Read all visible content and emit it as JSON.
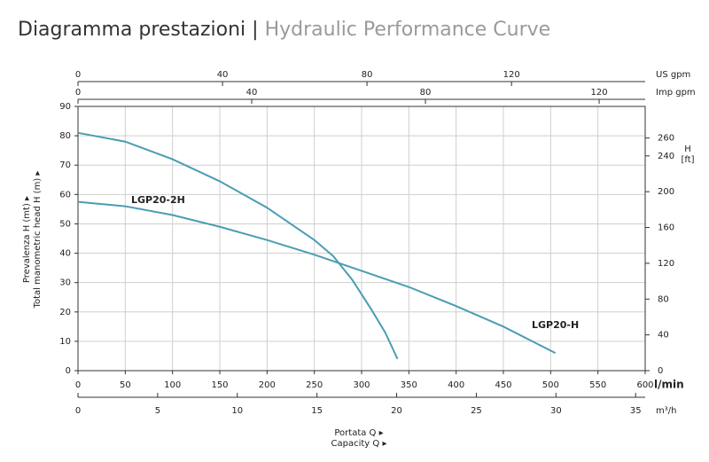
{
  "chart_data": {
    "type": "line",
    "title": "Diagramma prestazioni |",
    "subtitle": "Hydraulic Performance Curve",
    "x_label": "l/min",
    "xlim": [
      0,
      600
    ],
    "xticks": [
      0,
      50,
      100,
      150,
      200,
      250,
      300,
      350,
      400,
      450,
      500,
      550,
      600
    ],
    "ylim": [
      0,
      90
    ],
    "yticks": [
      0,
      10,
      20,
      30,
      40,
      50,
      60,
      70,
      80,
      90
    ],
    "y_label": [
      "Prevalenza H (mt) ▸",
      "Total manometric head H (m) ▸"
    ],
    "y2lim": [
      0,
      295.3
    ],
    "y2ticks": [
      0,
      40,
      80,
      120,
      160,
      200,
      240,
      260
    ],
    "y2_label": [
      "H",
      "[ft]"
    ],
    "us_gpm": {
      "label": "US gpm",
      "lim": [
        0,
        157
      ],
      "ticks": [
        0,
        40,
        80,
        120
      ]
    },
    "imp_gpm": {
      "label": "Imp gpm",
      "lim": [
        0,
        130.6
      ],
      "ticks": [
        0,
        40,
        80,
        120
      ]
    },
    "m3h": {
      "label": "m³/h",
      "lim": [
        0,
        35.6
      ],
      "ticks": [
        0,
        5,
        10,
        15,
        20,
        25,
        30,
        35
      ]
    },
    "x_caption": [
      "Portata Q ▸",
      "Capacity Q ▸"
    ],
    "grid": true,
    "series": [
      {
        "name": "LGP20-2H",
        "color": "#4a9db3",
        "x": [
          0,
          50,
          100,
          150,
          200,
          250,
          270,
          290,
          310,
          325,
          338
        ],
        "values": [
          81,
          78,
          72,
          64.5,
          55.5,
          44.5,
          39,
          31,
          21,
          13,
          4
        ]
      },
      {
        "name": "LGP20-H",
        "color": "#4a9db3",
        "x": [
          0,
          50,
          100,
          150,
          200,
          250,
          300,
          350,
          400,
          450,
          505
        ],
        "values": [
          57.5,
          56,
          53,
          49,
          44.5,
          39.5,
          34,
          28.5,
          22,
          15,
          6
        ]
      }
    ]
  }
}
